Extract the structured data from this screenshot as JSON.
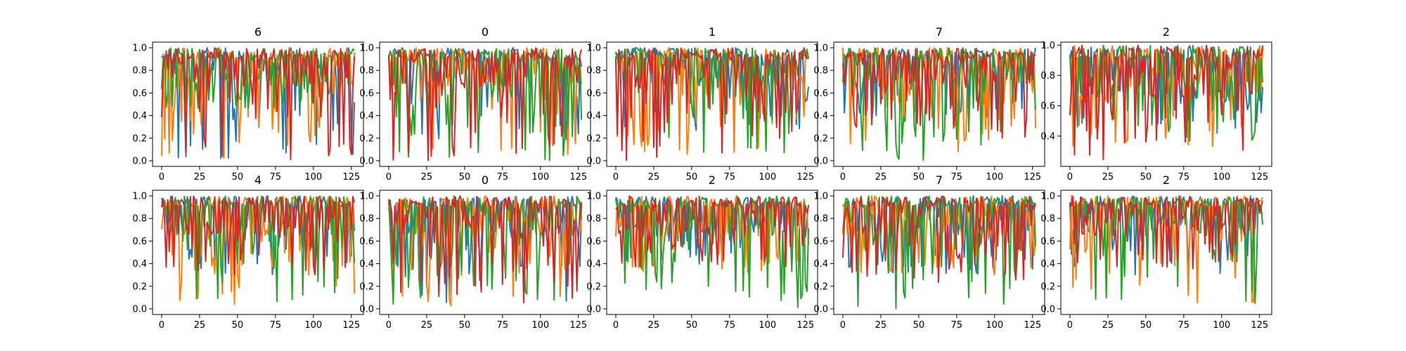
{
  "chart_data": {
    "type": "line",
    "series_colors": [
      "#1f77b4",
      "#ff7f0e",
      "#2ca02c",
      "#d62728"
    ],
    "grid": false,
    "legend": "none",
    "xlim": [
      -6,
      133
    ],
    "xticks": [
      0,
      25,
      50,
      75,
      100,
      125
    ],
    "x_points": 128,
    "panels": [
      {
        "title": "6",
        "ylim": [
          -0.05,
          1.05
        ],
        "yticks": [
          0.0,
          0.2,
          0.4,
          0.6,
          0.8,
          1.0
        ],
        "min_by_series": [
          0.0,
          0.0,
          0.45,
          0.0
        ],
        "seed": 11
      },
      {
        "title": "0",
        "ylim": [
          -0.05,
          1.05
        ],
        "yticks": [
          0.0,
          0.2,
          0.4,
          0.6,
          0.8,
          1.0
        ],
        "min_by_series": [
          0.15,
          0.05,
          0.0,
          0.0
        ],
        "seed": 23
      },
      {
        "title": "1",
        "ylim": [
          -0.05,
          1.05
        ],
        "yticks": [
          0.0,
          0.2,
          0.4,
          0.6,
          0.8,
          1.0
        ],
        "min_by_series": [
          0.25,
          0.05,
          0.0,
          0.0
        ],
        "seed": 37
      },
      {
        "title": "7",
        "ylim": [
          -0.05,
          1.05
        ],
        "yticks": [
          0.0,
          0.2,
          0.4,
          0.6,
          0.8,
          1.0
        ],
        "min_by_series": [
          0.35,
          0.05,
          0.0,
          0.2
        ],
        "seed": 41
      },
      {
        "title": "2",
        "ylim": [
          0.2,
          1.02
        ],
        "yticks": [
          0.4,
          0.6,
          0.8,
          1.0
        ],
        "min_by_series": [
          0.45,
          0.32,
          0.35,
          0.24
        ],
        "seed": 53
      },
      {
        "title": "4",
        "ylim": [
          -0.05,
          1.05
        ],
        "yticks": [
          0.0,
          0.2,
          0.4,
          0.6,
          0.8,
          1.0
        ],
        "min_by_series": [
          0.3,
          0.0,
          0.05,
          0.3
        ],
        "seed": 61
      },
      {
        "title": "0",
        "ylim": [
          -0.05,
          1.05
        ],
        "yticks": [
          0.0,
          0.2,
          0.4,
          0.6,
          0.8,
          1.0
        ],
        "min_by_series": [
          0.05,
          0.02,
          0.0,
          0.05
        ],
        "seed": 71
      },
      {
        "title": "2",
        "ylim": [
          -0.05,
          1.05
        ],
        "yticks": [
          0.0,
          0.2,
          0.4,
          0.6,
          0.8,
          1.0
        ],
        "min_by_series": [
          0.35,
          0.3,
          0.0,
          0.35
        ],
        "seed": 83
      },
      {
        "title": "7",
        "ylim": [
          -0.05,
          1.05
        ],
        "yticks": [
          0.0,
          0.2,
          0.4,
          0.6,
          0.8,
          1.0
        ],
        "min_by_series": [
          0.3,
          0.3,
          0.0,
          0.2
        ],
        "seed": 97
      },
      {
        "title": "2",
        "ylim": [
          -0.05,
          1.05
        ],
        "yticks": [
          0.0,
          0.2,
          0.4,
          0.6,
          0.8,
          1.0
        ],
        "min_by_series": [
          0.3,
          0.05,
          0.0,
          0.35
        ],
        "seed": 101
      }
    ]
  }
}
